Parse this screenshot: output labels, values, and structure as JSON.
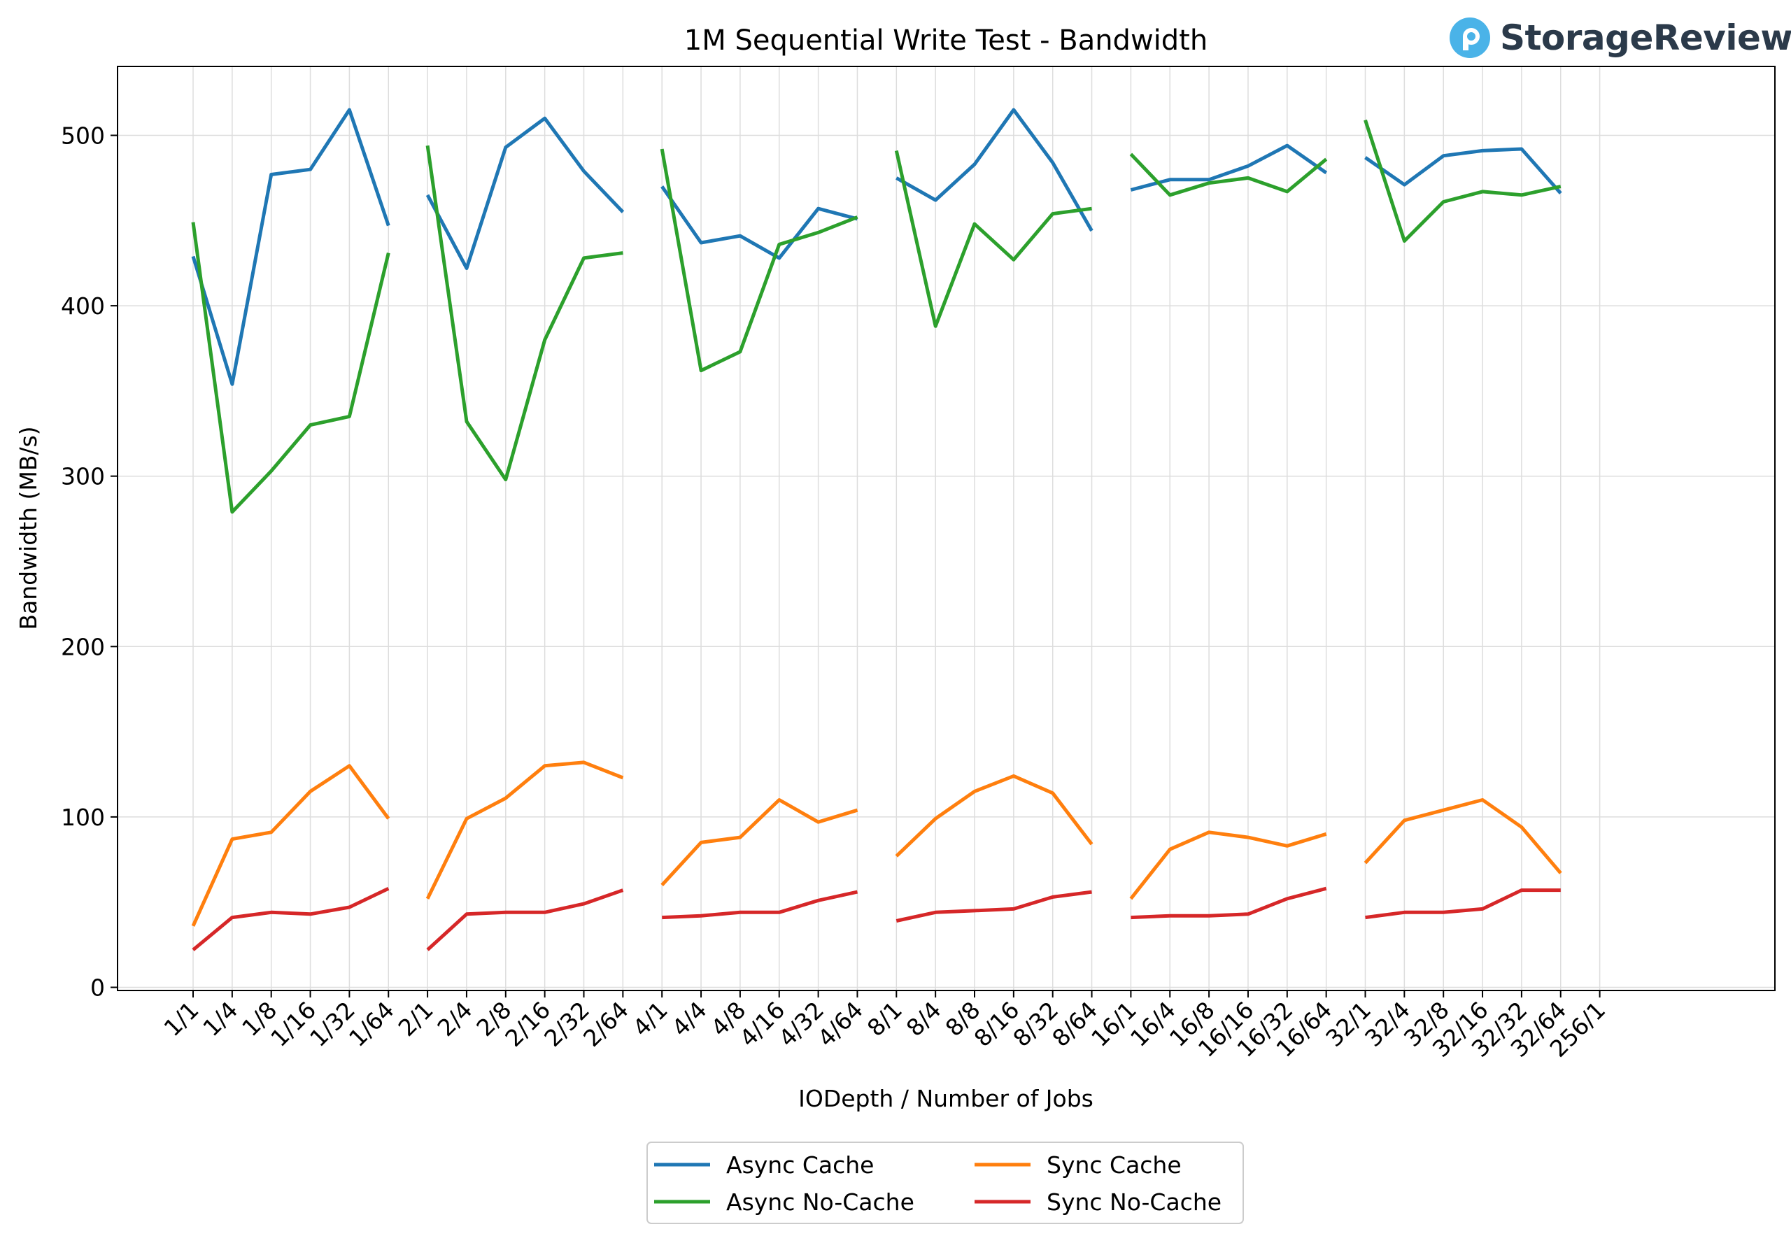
{
  "brand": {
    "name": "StorageReview",
    "icon": "storagereview-logo-icon",
    "icon_color": "#4ab3e8"
  },
  "chart_data": {
    "type": "line",
    "title": "1M Sequential Write Test - Bandwidth",
    "xlabel": "IODepth / Number of Jobs",
    "ylabel": "Bandwidth (MB/s)",
    "ylim": [
      0,
      540
    ],
    "yticks": [
      0,
      100,
      200,
      300,
      400,
      500
    ],
    "grid": true,
    "legend_position": "bottom-center",
    "categories": [
      "1/1",
      "1/4",
      "1/8",
      "1/16",
      "1/32",
      "1/64",
      "2/1",
      "2/4",
      "2/8",
      "2/16",
      "2/32",
      "2/64",
      "4/1",
      "4/4",
      "4/8",
      "4/16",
      "4/32",
      "4/64",
      "8/1",
      "8/4",
      "8/8",
      "8/16",
      "8/32",
      "8/64",
      "16/1",
      "16/4",
      "16/8",
      "16/16",
      "16/32",
      "16/64",
      "32/1",
      "32/4",
      "32/8",
      "32/16",
      "32/32",
      "32/64",
      "256/1"
    ],
    "series": [
      {
        "name": "Async Cache",
        "color": "#1f77b4",
        "values": [
          429,
          354,
          477,
          480,
          515,
          447,
          465,
          422,
          493,
          510,
          479,
          455,
          470,
          437,
          441,
          428,
          457,
          451,
          475,
          462,
          483,
          515,
          484,
          444,
          468,
          474,
          474,
          482,
          494,
          478,
          487,
          471,
          488,
          491,
          492,
          466,
          null
        ]
      },
      {
        "name": "Async No-Cache",
        "color": "#2ca02c",
        "values": [
          449,
          279,
          303,
          330,
          335,
          431,
          494,
          332,
          298,
          380,
          428,
          431,
          492,
          362,
          373,
          436,
          443,
          452,
          491,
          388,
          448,
          427,
          454,
          457,
          489,
          465,
          472,
          475,
          467,
          486,
          509,
          438,
          461,
          467,
          465,
          470,
          null
        ]
      },
      {
        "name": "Sync Cache",
        "color": "#ff7f0e",
        "values": [
          36,
          87,
          91,
          115,
          130,
          99,
          52,
          99,
          111,
          130,
          132,
          123,
          60,
          85,
          88,
          110,
          97,
          104,
          77,
          99,
          115,
          124,
          114,
          84,
          52,
          81,
          91,
          88,
          83,
          90,
          73,
          98,
          104,
          110,
          94,
          67,
          null
        ]
      },
      {
        "name": "Sync No-Cache",
        "color": "#d62728",
        "values": [
          22,
          41,
          44,
          43,
          47,
          58,
          22,
          43,
          44,
          44,
          49,
          57,
          41,
          42,
          44,
          44,
          51,
          56,
          39,
          44,
          45,
          46,
          53,
          56,
          41,
          42,
          42,
          43,
          52,
          58,
          41,
          44,
          44,
          46,
          57,
          57,
          null
        ]
      }
    ],
    "segments": [
      [
        0,
        5
      ],
      [
        6,
        11
      ],
      [
        12,
        17
      ],
      [
        18,
        23
      ],
      [
        24,
        29
      ],
      [
        30,
        35
      ]
    ]
  }
}
